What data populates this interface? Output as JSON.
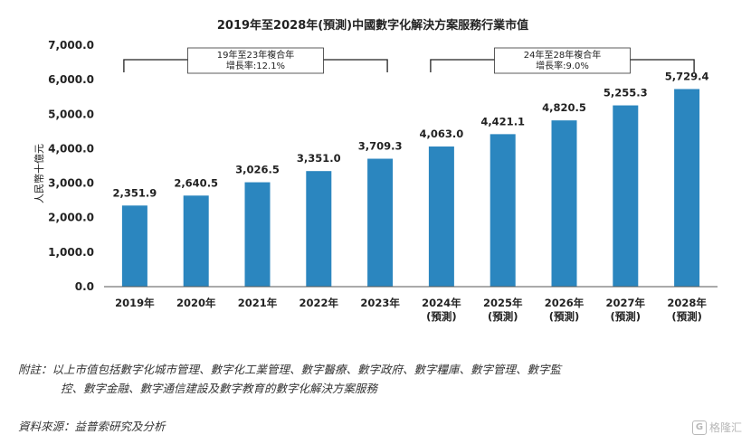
{
  "chart_data": {
    "type": "bar",
    "title": "2019年至2028年(預測)中國數字化解決方案服務行業市值",
    "ylabel": "人民幣十億元",
    "xlabel": "",
    "categories": [
      [
        "2019年"
      ],
      [
        "2020年"
      ],
      [
        "2021年"
      ],
      [
        "2022年"
      ],
      [
        "2023年"
      ],
      [
        "2024年",
        "(預測)"
      ],
      [
        "2025年",
        "(預測)"
      ],
      [
        "2026年",
        "(預測)"
      ],
      [
        "2027年",
        "(預測)"
      ],
      [
        "2028年",
        "(預測)"
      ]
    ],
    "values": [
      2351.9,
      2640.5,
      3026.5,
      3351.0,
      3709.3,
      4063.0,
      4421.1,
      4820.5,
      5255.3,
      5729.4
    ],
    "value_labels": [
      "2,351.9",
      "2,640.5",
      "3,026.5",
      "3,351.0",
      "3,709.3",
      "4,063.0",
      "4,421.1",
      "4,820.5",
      "5,255.3",
      "5,729.4"
    ],
    "yticks": [
      "0.0",
      "1,000.0",
      "2,000.0",
      "3,000.0",
      "4,000.0",
      "5,000.0",
      "6,000.0",
      "7,000.0"
    ],
    "ylim": [
      0,
      7000
    ],
    "bar_color": "#2b86bf",
    "grid": false,
    "annotations": [
      {
        "from_index": 0,
        "to_index": 4,
        "lines": [
          "19年至23年複合年",
          "增長率:12.1%"
        ]
      },
      {
        "from_index": 5,
        "to_index": 9,
        "lines": [
          "24年至28年複合年",
          "增長率:9.0%"
        ]
      }
    ]
  },
  "footnote": {
    "line1": "附註：以上市值包括數字化城市管理、數字化工業管理、數字醫療、數字政府、數字糧庫、數字管理、數字監",
    "line2": "控、數字金融、數字通信建設及數字教育的數字化解決方案服務",
    "source": "資料來源：益普索研究及分析"
  },
  "watermark": {
    "icon": "gelonghui-logo-icon",
    "text": "格隆汇"
  }
}
